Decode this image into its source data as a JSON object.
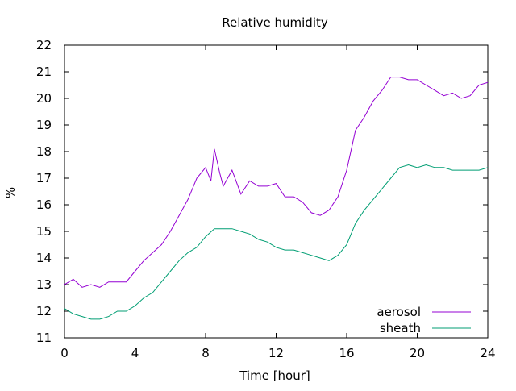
{
  "chart_data": {
    "type": "line",
    "title": "Relative humidity",
    "xlabel": "Time [hour]",
    "ylabel": "%",
    "xlim": [
      0,
      24
    ],
    "ylim": [
      11,
      22
    ],
    "xticks": [
      0,
      4,
      8,
      12,
      16,
      20,
      24
    ],
    "yticks": [
      11,
      12,
      13,
      14,
      15,
      16,
      17,
      18,
      19,
      20,
      21,
      22
    ],
    "grid": false,
    "legend_position": "bottom-right",
    "series": [
      {
        "name": "aerosol",
        "color": "#9400d3",
        "x": [
          0,
          0.5,
          1,
          1.5,
          2,
          2.5,
          3,
          3.5,
          4,
          4.5,
          5,
          5.5,
          6,
          6.5,
          7,
          7.5,
          8,
          8.3,
          8.5,
          8.8,
          9,
          9.5,
          10,
          10.5,
          11,
          11.5,
          12,
          12.5,
          13,
          13.5,
          14,
          14.5,
          15,
          15.5,
          16,
          16.5,
          17,
          17.5,
          18,
          18.5,
          19,
          19.5,
          20,
          20.5,
          21,
          21.5,
          22,
          22.5,
          23,
          23.5,
          24
        ],
        "y": [
          13.0,
          13.2,
          12.9,
          13.0,
          12.9,
          13.1,
          13.1,
          13.1,
          13.5,
          13.9,
          14.2,
          14.5,
          15.0,
          15.6,
          16.2,
          17.0,
          17.4,
          16.9,
          18.1,
          17.2,
          16.7,
          17.3,
          16.4,
          16.9,
          16.7,
          16.7,
          16.8,
          16.3,
          16.3,
          16.1,
          15.7,
          15.6,
          15.8,
          16.3,
          17.3,
          18.8,
          19.3,
          19.9,
          20.3,
          20.8,
          20.8,
          20.7,
          20.7,
          20.5,
          20.3,
          20.1,
          20.2,
          20.0,
          20.1,
          20.5,
          20.6
        ]
      },
      {
        "name": "sheath",
        "color": "#009e73",
        "x": [
          0,
          0.5,
          1,
          1.5,
          2,
          2.5,
          3,
          3.5,
          4,
          4.5,
          5,
          5.5,
          6,
          6.5,
          7,
          7.5,
          8,
          8.5,
          9,
          9.5,
          10,
          10.5,
          11,
          11.5,
          12,
          12.5,
          13,
          13.5,
          14,
          14.5,
          15,
          15.5,
          16,
          16.5,
          17,
          17.5,
          18,
          18.5,
          19,
          19.5,
          20,
          20.5,
          21,
          21.5,
          22,
          22.5,
          23,
          23.5,
          24
        ],
        "y": [
          12.1,
          11.9,
          11.8,
          11.7,
          11.7,
          11.8,
          12.0,
          12.0,
          12.2,
          12.5,
          12.7,
          13.1,
          13.5,
          13.9,
          14.2,
          14.4,
          14.8,
          15.1,
          15.1,
          15.1,
          15.0,
          14.9,
          14.7,
          14.6,
          14.4,
          14.3,
          14.3,
          14.2,
          14.1,
          14.0,
          13.9,
          14.1,
          14.5,
          15.3,
          15.8,
          16.2,
          16.6,
          17.0,
          17.4,
          17.5,
          17.4,
          17.5,
          17.4,
          17.4,
          17.3,
          17.3,
          17.3,
          17.3,
          17.4
        ]
      }
    ]
  }
}
